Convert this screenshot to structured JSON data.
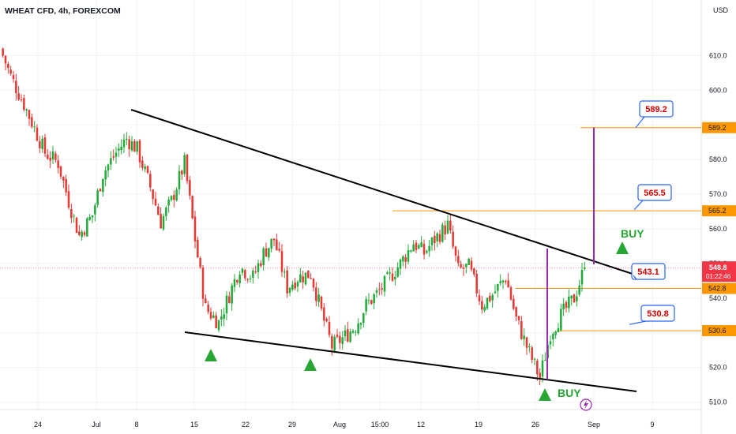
{
  "symbol": {
    "title": "WHEAT CFD, 4h, FOREXCOM"
  },
  "currency": "USD",
  "price_scale": {
    "ticks": [
      "610.0",
      "600.0",
      "590.0",
      "580.0",
      "570.0",
      "560.0",
      "550.0",
      "540.0",
      "530.0",
      "520.0",
      "510.0"
    ],
    "tags": [
      {
        "label": "589.2",
        "value": 589.2,
        "color": "#ff9800",
        "text_color": "#131722"
      },
      {
        "label": "565.2",
        "value": 565.2,
        "color": "#ff9800",
        "text_color": "#131722"
      },
      {
        "label": "542.8",
        "value": 542.8,
        "color": "#ff9800",
        "text_color": "#131722"
      },
      {
        "label": "530.6",
        "value": 530.6,
        "color": "#ff9800",
        "text_color": "#131722"
      }
    ],
    "current": {
      "price": "548.8",
      "countdown": "01:22:46",
      "value": 548.8,
      "color": "#f23645"
    }
  },
  "time_axis": {
    "labels": [
      "24",
      "Jul",
      "8",
      "15",
      "22",
      "29",
      "Aug",
      "15:00",
      "12",
      "19",
      "26",
      "Sep",
      "9"
    ]
  },
  "annotations": {
    "callouts": [
      {
        "text": "589.2",
        "value": 589.2
      },
      {
        "text": "565.5",
        "value": 565.5
      },
      {
        "text": "543.1",
        "value": 543.1
      },
      {
        "text": "530.8",
        "value": 530.8
      }
    ],
    "buy_labels": [
      "BUY",
      "BUY"
    ]
  },
  "colors": {
    "up": "#22ab3a",
    "down": "#e53935",
    "trendline": "#000000",
    "target_line": "#9c27b0",
    "level_line": "#ff9800",
    "callout_border": "#2962ff",
    "callout_text": "#d50000",
    "buy_arrow": "#27a634"
  },
  "chart_data": {
    "type": "candlestick",
    "series_name": "WHEAT CFD, 4h",
    "ylim": [
      506,
      618
    ],
    "x_domain": [
      "Jun 20",
      "Sep 12"
    ],
    "ohlc_trace": [
      [
        612,
        609,
        603,
        604
      ],
      [
        604,
        600,
        594,
        596
      ],
      [
        596,
        594,
        586,
        589
      ],
      [
        589,
        587,
        580,
        582
      ],
      [
        582,
        583,
        576,
        579
      ],
      [
        579,
        576,
        566,
        568
      ],
      [
        568,
        566,
        556,
        558
      ],
      [
        558,
        566,
        558,
        564
      ],
      [
        564,
        578,
        562,
        576
      ],
      [
        576,
        585,
        572,
        582
      ],
      [
        582,
        588,
        574,
        586
      ],
      [
        586,
        594,
        578,
        583
      ],
      [
        583,
        582,
        570,
        572
      ],
      [
        572,
        570,
        560,
        562
      ],
      [
        562,
        570,
        558,
        568
      ],
      [
        568,
        584,
        565,
        579
      ],
      [
        579,
        575,
        555,
        557
      ],
      [
        557,
        548,
        535,
        537
      ],
      [
        537,
        540,
        530,
        533
      ],
      [
        533,
        544,
        532,
        541
      ],
      [
        541,
        552,
        538,
        549
      ],
      [
        549,
        556,
        540,
        546
      ],
      [
        546,
        558,
        544,
        553
      ],
      [
        553,
        562,
        548,
        557
      ],
      [
        557,
        551,
        541,
        543
      ],
      [
        543,
        548,
        538,
        546
      ],
      [
        546,
        550,
        541,
        547
      ],
      [
        547,
        540,
        534,
        536
      ],
      [
        536,
        530,
        524,
        526
      ],
      [
        526,
        532,
        522,
        529
      ],
      [
        529,
        536,
        524,
        532
      ],
      [
        532,
        541,
        528,
        538
      ],
      [
        538,
        546,
        534,
        542
      ],
      [
        542,
        549,
        537,
        546
      ],
      [
        546,
        555,
        541,
        550
      ],
      [
        550,
        560,
        546,
        556
      ],
      [
        556,
        562,
        550,
        553
      ],
      [
        553,
        560,
        548,
        557
      ],
      [
        557,
        566,
        552,
        561
      ],
      [
        561,
        556,
        545,
        548
      ],
      [
        548,
        552,
        542,
        549
      ],
      [
        549,
        546,
        536,
        538
      ],
      [
        538,
        544,
        534,
        541
      ],
      [
        541,
        552,
        538,
        546
      ],
      [
        546,
        543,
        532,
        534
      ],
      [
        534,
        536,
        524,
        526
      ],
      [
        526,
        522,
        515,
        517
      ],
      [
        517,
        532,
        516,
        530
      ],
      [
        530,
        538,
        528,
        535
      ],
      [
        535,
        542,
        532,
        540
      ],
      [
        540,
        548,
        538,
        548.8
      ]
    ],
    "levels": [
      589.2,
      565.2,
      542.8,
      530.6
    ],
    "trendlines": [
      {
        "name": "upper",
        "from": [
          "Jul 8",
          595
        ],
        "to": [
          "Sep 12",
          546
        ]
      },
      {
        "name": "lower",
        "from": [
          "Jul 13",
          530
        ],
        "to": [
          "Sep 12",
          513
        ]
      }
    ],
    "buy_signals": [
      "Jul 17",
      "Jul 29",
      "Aug 26",
      "Sep 2"
    ]
  }
}
